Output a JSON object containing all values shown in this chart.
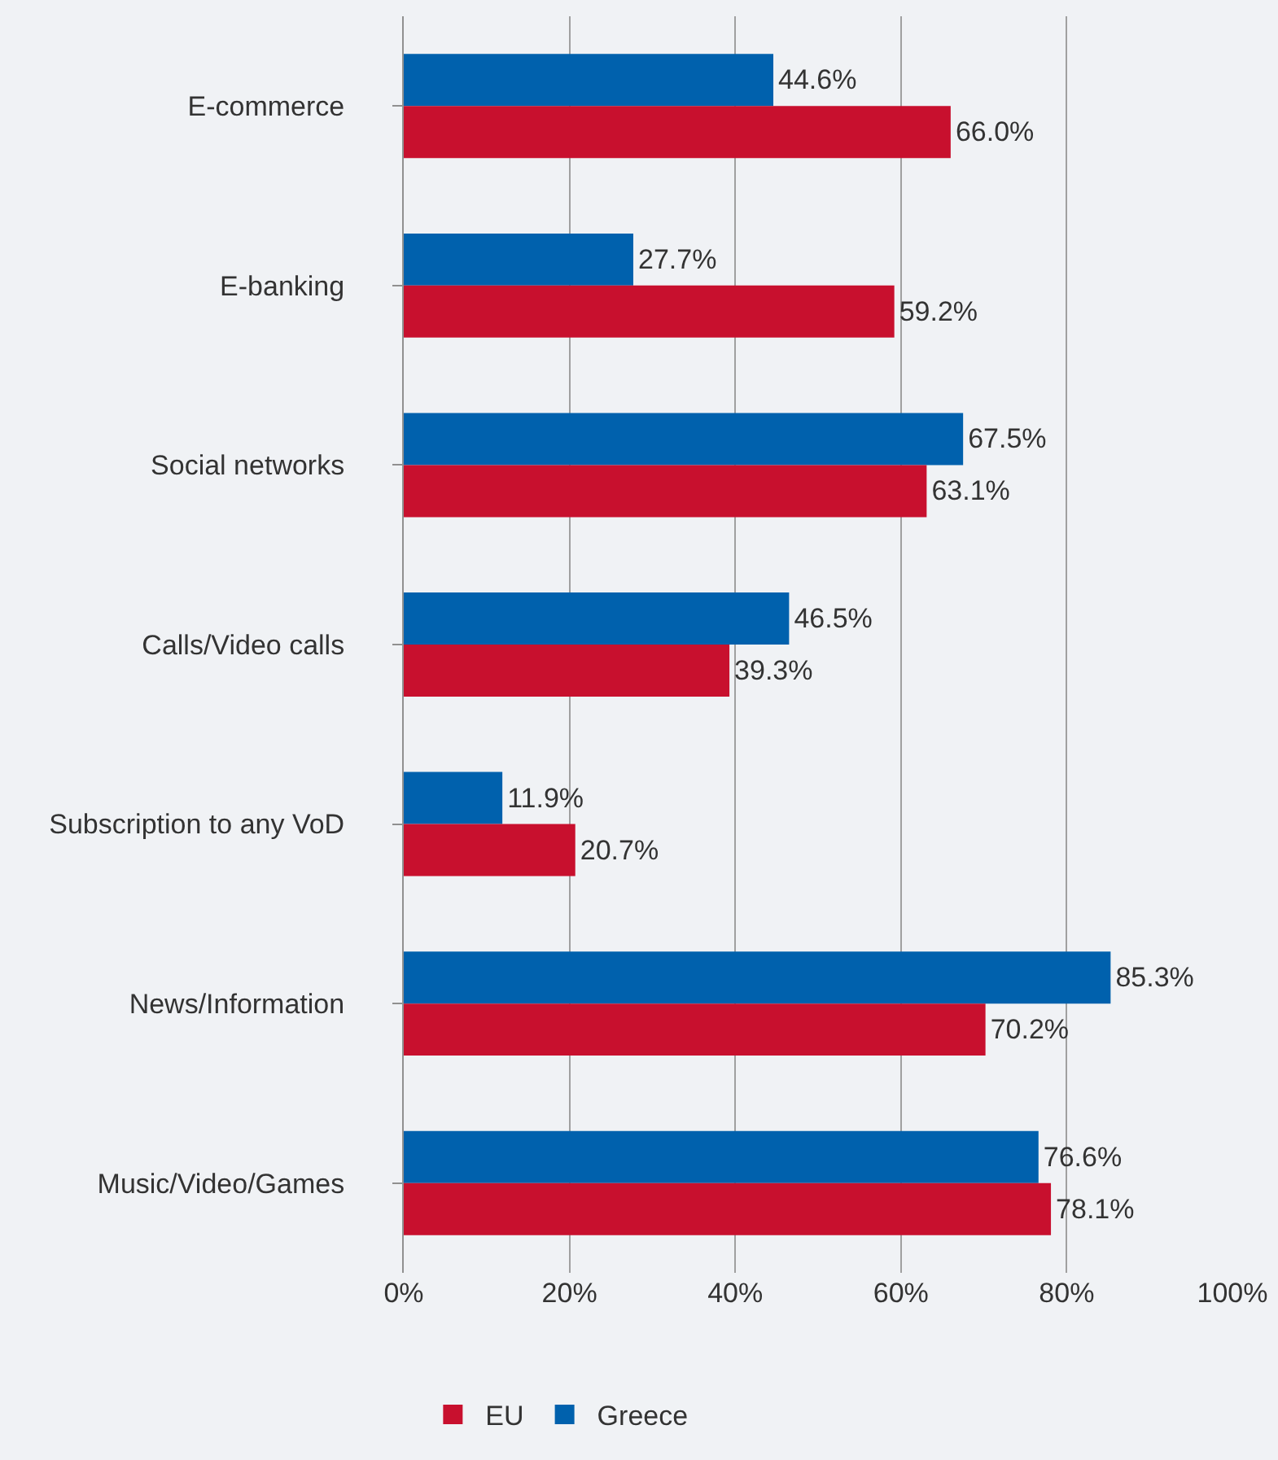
{
  "chart_data": {
    "type": "bar",
    "orientation": "horizontal",
    "categories": [
      "E-commerce",
      "E-banking",
      "Social networks",
      "Calls/Video calls",
      "Subscription to any VoD",
      "News/Information",
      "Music/Video/Games"
    ],
    "series": [
      {
        "name": "Greece",
        "color": "#0061ad",
        "values": [
          44.6,
          27.7,
          67.5,
          46.5,
          11.9,
          85.3,
          76.6
        ],
        "value_labels": [
          "44.6%",
          "27.7%",
          "67.5%",
          "46.5%",
          "11.9%",
          "85.3%",
          "76.6%"
        ]
      },
      {
        "name": "EU",
        "color": "#c8102e",
        "values": [
          66.0,
          59.2,
          63.1,
          39.3,
          20.7,
          70.2,
          78.1
        ],
        "value_labels": [
          "66.0%",
          "59.2%",
          "63.1%",
          "39.3%",
          "20.7%",
          "70.2%",
          "78.1%"
        ]
      }
    ],
    "xlim": [
      0,
      100
    ],
    "xticks": [
      {
        "value": 0,
        "label": "0%"
      },
      {
        "value": 20,
        "label": "20%"
      },
      {
        "value": 40,
        "label": "40%"
      },
      {
        "value": 60,
        "label": "60%"
      },
      {
        "value": 80,
        "label": "80%"
      },
      {
        "value": 100,
        "label": "100%"
      }
    ],
    "grid": "x",
    "legend": "bottom"
  }
}
